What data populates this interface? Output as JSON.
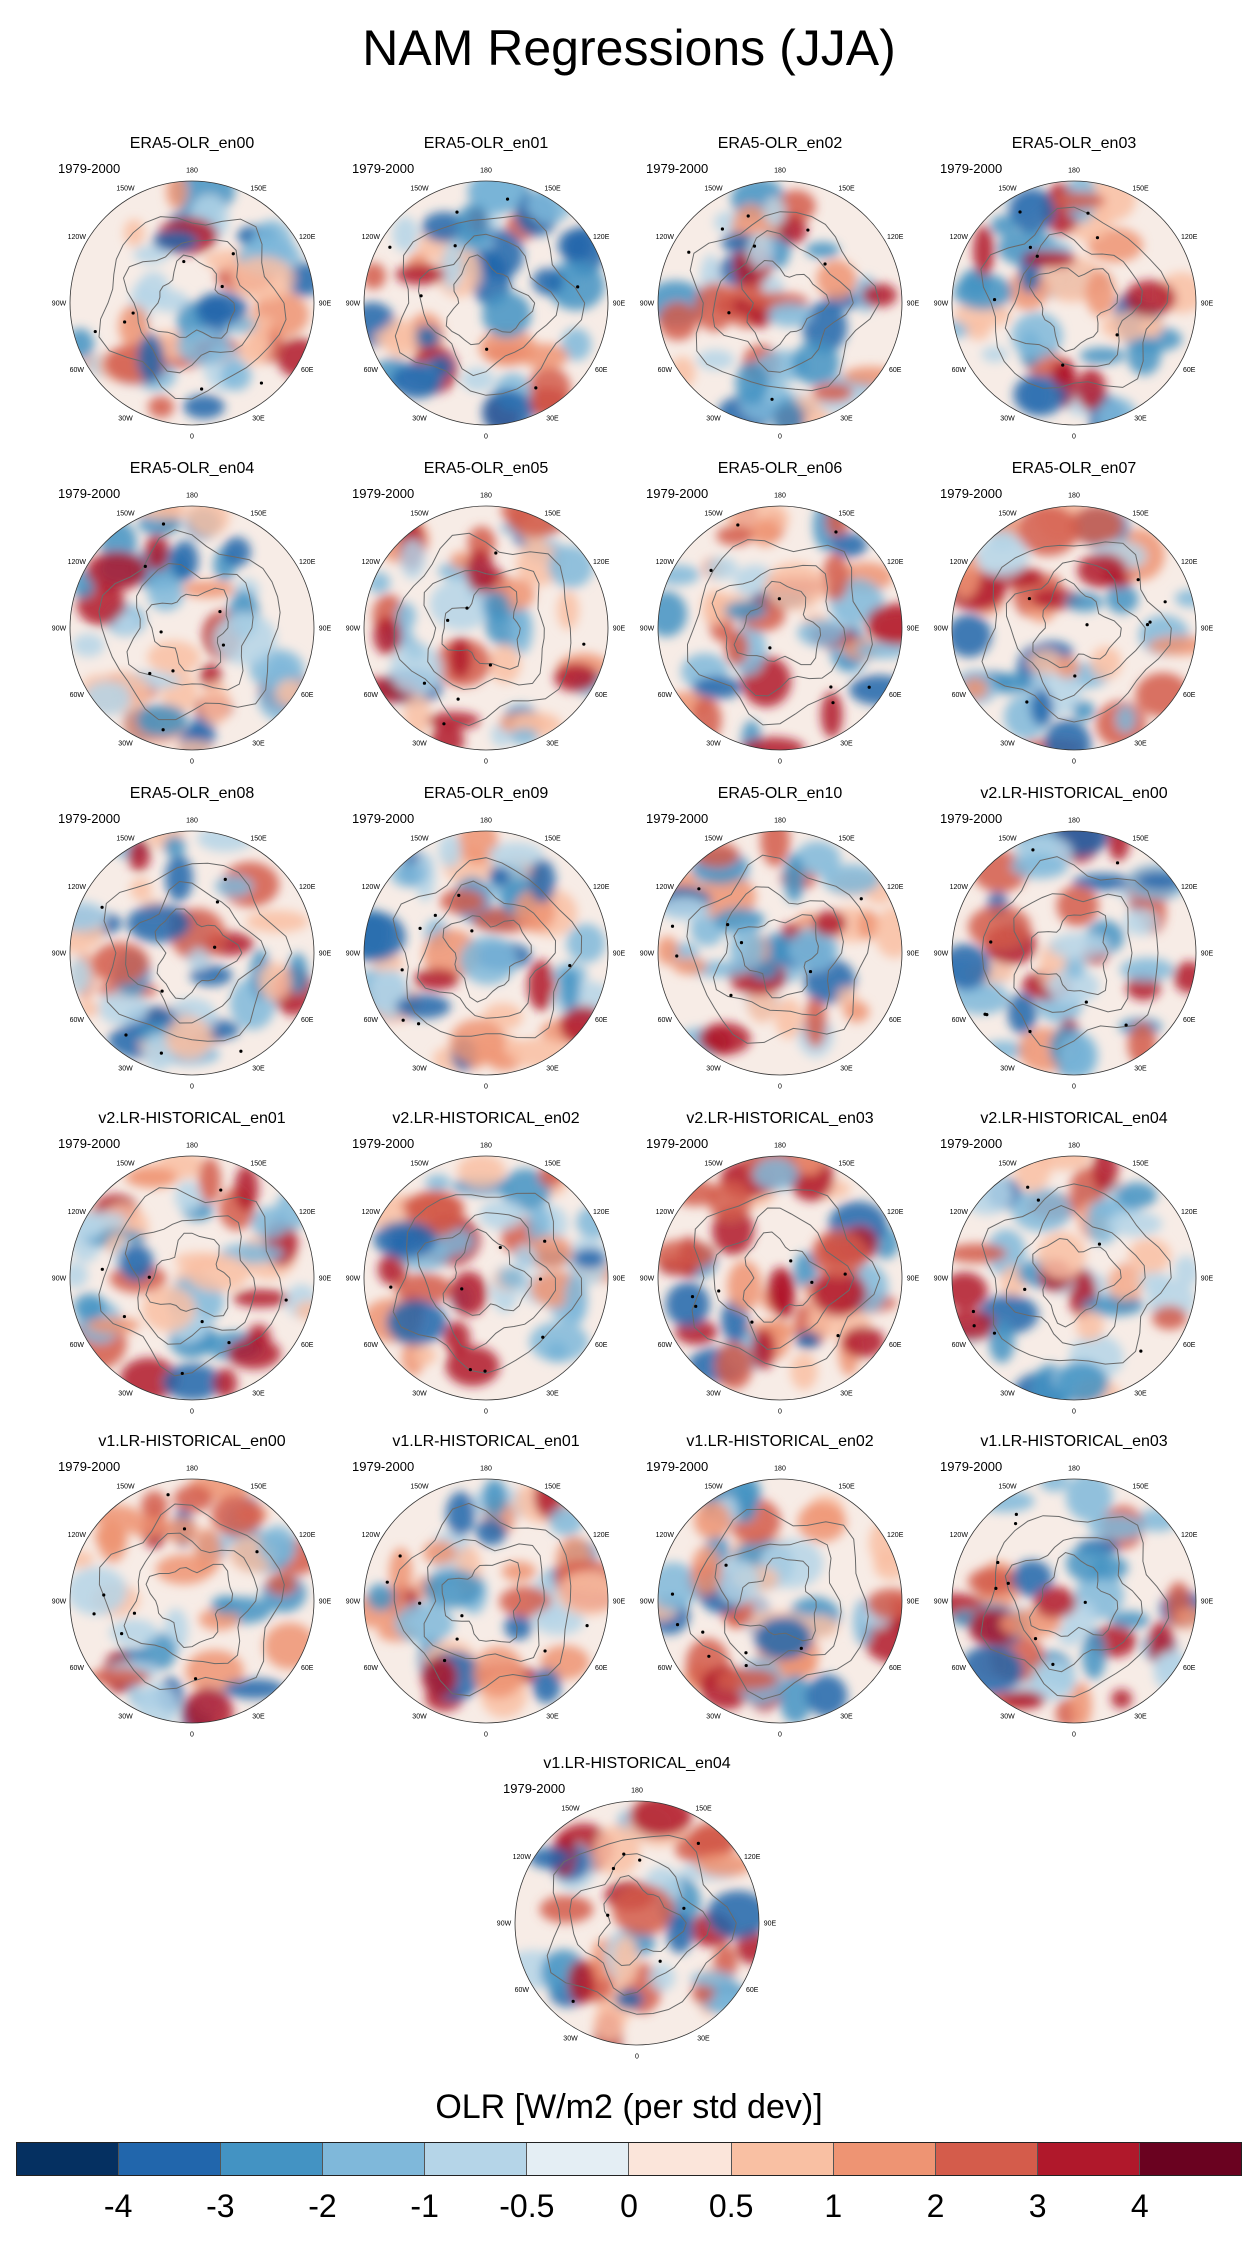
{
  "title": "NAM Regressions (JJA)",
  "panels": [
    {
      "title": "ERA5-OLR_en00",
      "period": "1979-2000"
    },
    {
      "title": "ERA5-OLR_en01",
      "period": "1979-2000"
    },
    {
      "title": "ERA5-OLR_en02",
      "period": "1979-2000"
    },
    {
      "title": "ERA5-OLR_en03",
      "period": "1979-2000"
    },
    {
      "title": "ERA5-OLR_en04",
      "period": "1979-2000"
    },
    {
      "title": "ERA5-OLR_en05",
      "period": "1979-2000"
    },
    {
      "title": "ERA5-OLR_en06",
      "period": "1979-2000"
    },
    {
      "title": "ERA5-OLR_en07",
      "period": "1979-2000"
    },
    {
      "title": "ERA5-OLR_en08",
      "period": "1979-2000"
    },
    {
      "title": "ERA5-OLR_en09",
      "period": "1979-2000"
    },
    {
      "title": "ERA5-OLR_en10",
      "period": "1979-2000"
    },
    {
      "title": "v2.LR-HISTORICAL_en00",
      "period": "1979-2000"
    },
    {
      "title": "v2.LR-HISTORICAL_en01",
      "period": "1979-2000"
    },
    {
      "title": "v2.LR-HISTORICAL_en02",
      "period": "1979-2000"
    },
    {
      "title": "v2.LR-HISTORICAL_en03",
      "period": "1979-2000"
    },
    {
      "title": "v2.LR-HISTORICAL_en04",
      "period": "1979-2000"
    },
    {
      "title": "v1.LR-HISTORICAL_en00",
      "period": "1979-2000"
    },
    {
      "title": "v1.LR-HISTORICAL_en01",
      "period": "1979-2000"
    },
    {
      "title": "v1.LR-HISTORICAL_en02",
      "period": "1979-2000"
    },
    {
      "title": "v1.LR-HISTORICAL_en03",
      "period": "1979-2000"
    },
    {
      "title": "v1.LR-HISTORICAL_en04",
      "period": "1979-2000"
    }
  ],
  "longitude_labels": [
    "180",
    "150E",
    "120E",
    "90E",
    "60E",
    "30E",
    "0",
    "30W",
    "60W",
    "90W",
    "120W",
    "150W"
  ],
  "colorbar": {
    "title": "OLR [W/m2 (per std dev)]",
    "tick_labels": [
      "-4",
      "-3",
      "-2",
      "-1",
      "-0.5",
      "0",
      "0.5",
      "1",
      "2",
      "3",
      "4"
    ],
    "colors": [
      "#053061",
      "#2166ac",
      "#4393c3",
      "#7fb8da",
      "#b5d5e8",
      "#e4eef4",
      "#fbe5da",
      "#f9c0a3",
      "#ee9473",
      "#d45c4b",
      "#b0182b",
      "#6a0220"
    ]
  }
}
